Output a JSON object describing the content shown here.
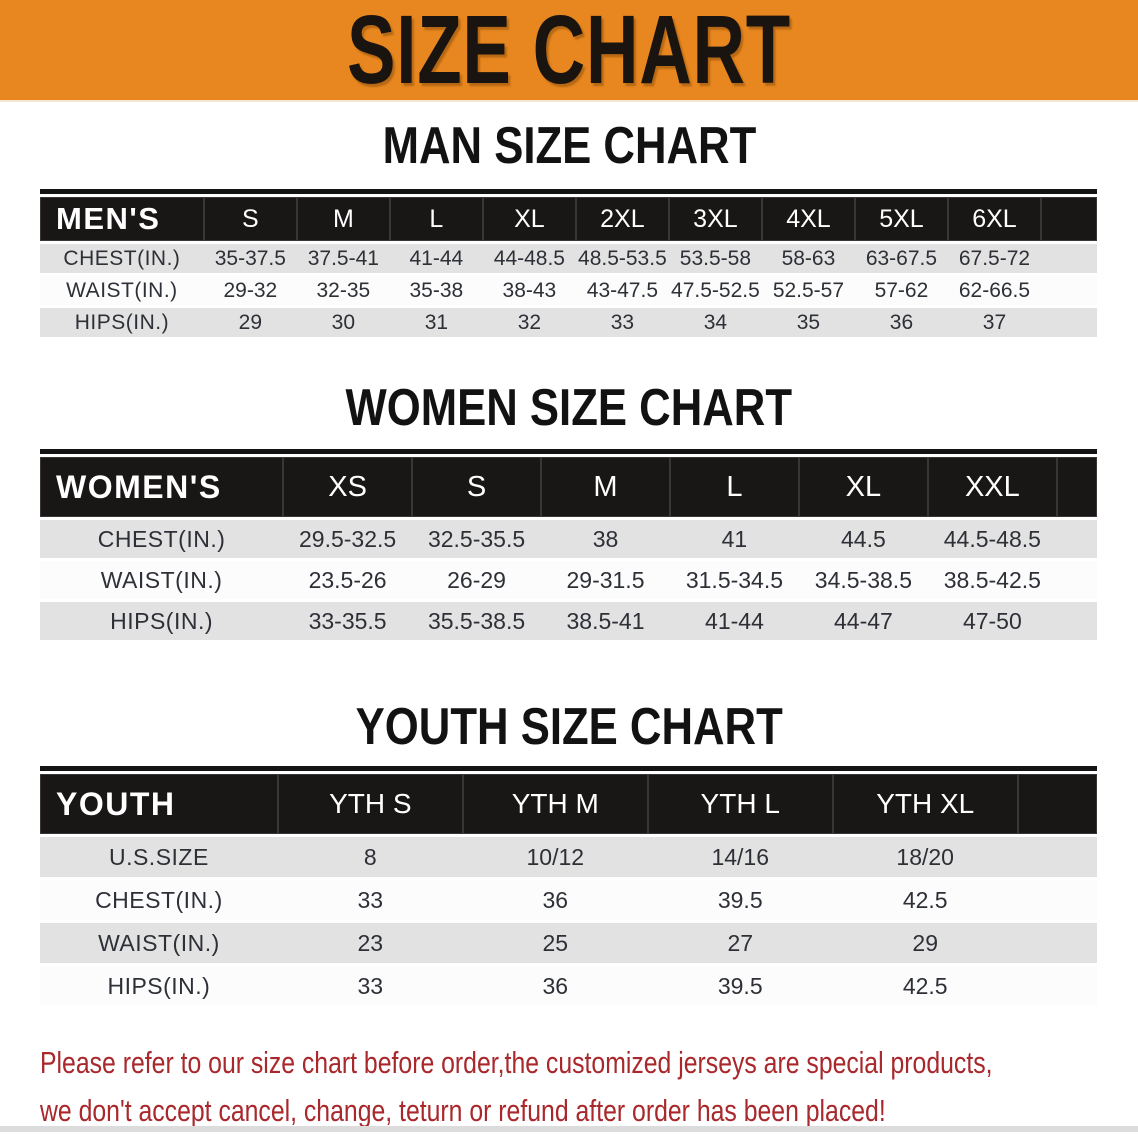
{
  "banner": {
    "title": "SIZE CHART"
  },
  "colors": {
    "banner_bg": "#E8871F",
    "banner_text": "#1a1410",
    "table_header_bg": "#191616",
    "table_header_text": "#ffffff",
    "row_gray_bg": "#e3e2e2",
    "row_white_bg": "#fcfcfc",
    "notice_text": "#A8282C"
  },
  "chart_data": [
    {
      "type": "table",
      "title": "MAN SIZE CHART",
      "header_label": "MEN'S",
      "columns": [
        "S",
        "M",
        "L",
        "XL",
        "2XL",
        "3XL",
        "4XL",
        "5XL",
        "6XL"
      ],
      "rows": [
        {
          "label": "CHEST(IN.)",
          "values": [
            "35-37.5",
            "37.5-41",
            "41-44",
            "44-48.5",
            "48.5-53.5",
            "53.5-58",
            "58-63",
            "63-67.5",
            "67.5-72"
          ]
        },
        {
          "label": "WAIST(IN.)",
          "values": [
            "29-32",
            "32-35",
            "35-38",
            "38-43",
            "43-47.5",
            "47.5-52.5",
            "52.5-57",
            "57-62",
            "62-66.5"
          ]
        },
        {
          "label": "HIPS(IN.)",
          "values": [
            "29",
            "30",
            "31",
            "32",
            "33",
            "34",
            "35",
            "36",
            "37"
          ]
        }
      ]
    },
    {
      "type": "table",
      "title": "WOMEN SIZE CHART",
      "header_label": "WOMEN'S",
      "columns": [
        "XS",
        "S",
        "M",
        "L",
        "XL",
        "XXL"
      ],
      "rows": [
        {
          "label": "CHEST(IN.)",
          "values": [
            "29.5-32.5",
            "32.5-35.5",
            "38",
            "41",
            "44.5",
            "44.5-48.5"
          ]
        },
        {
          "label": "WAIST(IN.)",
          "values": [
            "23.5-26",
            "26-29",
            "29-31.5",
            "31.5-34.5",
            "34.5-38.5",
            "38.5-42.5"
          ]
        },
        {
          "label": "HIPS(IN.)",
          "values": [
            "33-35.5",
            "35.5-38.5",
            "38.5-41",
            "41-44",
            "44-47",
            "47-50"
          ]
        }
      ]
    },
    {
      "type": "table",
      "title": "YOUTH SIZE CHART",
      "header_label": "YOUTH",
      "columns": [
        "YTH S",
        "YTH M",
        "YTH L",
        "YTH XL"
      ],
      "rows": [
        {
          "label": "U.S.SIZE",
          "values": [
            "8",
            "10/12",
            "14/16",
            "18/20"
          ]
        },
        {
          "label": "CHEST(IN.)",
          "values": [
            "33",
            "36",
            "39.5",
            "42.5"
          ]
        },
        {
          "label": "WAIST(IN.)",
          "values": [
            "23",
            "25",
            "27",
            "29"
          ]
        },
        {
          "label": "HIPS(IN.)",
          "values": [
            "33",
            "36",
            "39.5",
            "42.5"
          ]
        }
      ]
    }
  ],
  "footer": {
    "line1": "Please refer to our size chart before order,the customized jerseys are special products,",
    "line2": "we don't accept cancel, change, teturn or refund after order has been placed!"
  }
}
